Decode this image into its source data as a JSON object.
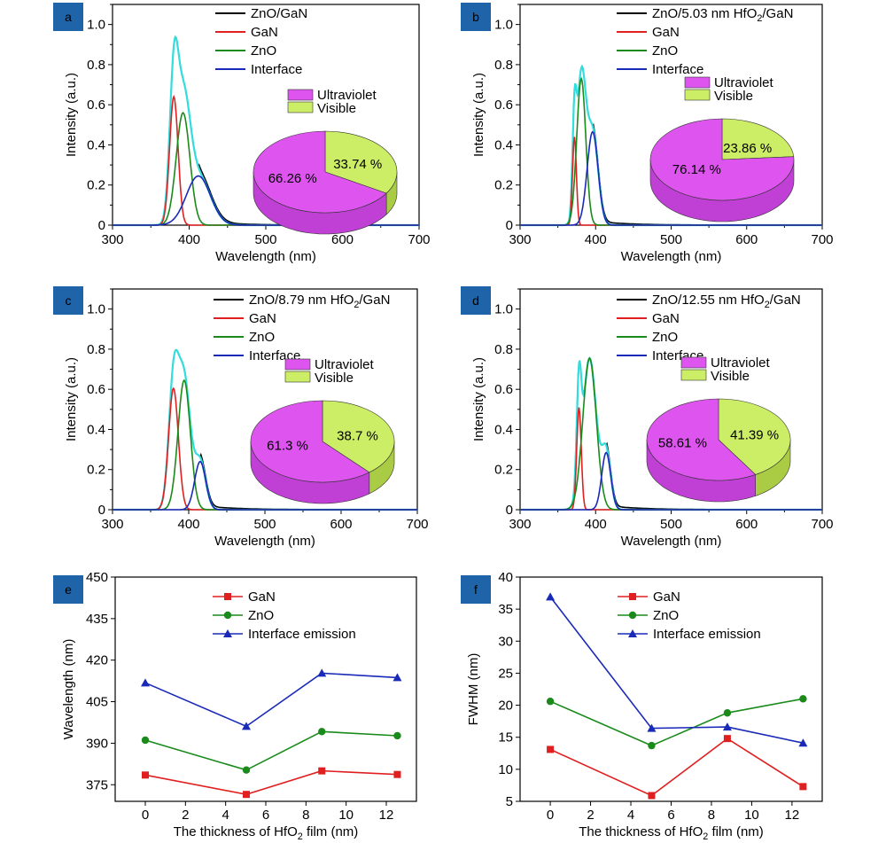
{
  "colors": {
    "measured": "#000000",
    "fit": "#33dddd",
    "gan": "#e02020",
    "zno": "#1a8a1a",
    "interface": "#1a2ab8",
    "uv": "#dd55ee",
    "uv_side": "#c040d6",
    "vis": "#ccee66",
    "vis_side": "#aacc44",
    "badge": "#1f63a8"
  },
  "chart_data": [
    {
      "panel": "a",
      "type": "line",
      "xlabel": "Wavelength (nm)",
      "ylabel": "Intensity (a.u.)",
      "xlim": [
        300,
        700
      ],
      "ylim": [
        0,
        1.1
      ],
      "xticks": [
        300,
        400,
        500,
        600,
        700
      ],
      "yticks": [
        0,
        0.2,
        0.4,
        0.6,
        0.8,
        1.0
      ],
      "legend": [
        {
          "key": "measured",
          "pre": "ZnO/GaN",
          "sub": "",
          "post": ""
        },
        {
          "key": "gan",
          "pre": "GaN",
          "sub": "",
          "post": ""
        },
        {
          "key": "zno",
          "pre": "ZnO",
          "sub": "",
          "post": ""
        },
        {
          "key": "interface",
          "pre": "Interface",
          "sub": "",
          "post": ""
        }
      ],
      "peaks": {
        "gan": {
          "center": 380,
          "height": 0.64,
          "fwhm": 13
        },
        "zno": {
          "center": 392,
          "height": 0.56,
          "fwhm": 21
        },
        "interface": {
          "center": 412,
          "height": 0.245,
          "fwhm": 37
        }
      },
      "pie": {
        "labels": [
          "Ultraviolet",
          "Visible"
        ],
        "values": [
          66.26,
          33.74
        ],
        "value_labels": [
          "66.26 %",
          "33.74 %"
        ]
      }
    },
    {
      "panel": "b",
      "type": "line",
      "xlabel": "Wavelength (nm)",
      "ylabel": "Intensity (a.u.)",
      "xlim": [
        300,
        700
      ],
      "ylim": [
        0,
        1.1
      ],
      "xticks": [
        300,
        400,
        500,
        600,
        700
      ],
      "yticks": [
        0,
        0.2,
        0.4,
        0.6,
        0.8,
        1.0
      ],
      "legend": [
        {
          "key": "measured",
          "pre": "ZnO/5.03 nm HfO",
          "sub": "2",
          "post": "/GaN"
        },
        {
          "key": "gan",
          "pre": "GaN",
          "sub": "",
          "post": ""
        },
        {
          "key": "zno",
          "pre": "ZnO",
          "sub": "",
          "post": ""
        },
        {
          "key": "interface",
          "pre": "Interface",
          "sub": "",
          "post": ""
        }
      ],
      "peaks": {
        "gan": {
          "center": 372,
          "height": 0.44,
          "fwhm": 6
        },
        "zno": {
          "center": 381,
          "height": 0.73,
          "fwhm": 14
        },
        "interface": {
          "center": 396,
          "height": 0.465,
          "fwhm": 17
        }
      },
      "pie": {
        "labels": [
          "Ultraviolet",
          "Visible"
        ],
        "values": [
          76.14,
          23.86
        ],
        "value_labels": [
          "76.14 %",
          "23.86 %"
        ]
      }
    },
    {
      "panel": "c",
      "type": "line",
      "xlabel": "Wavelength (nm)",
      "ylabel": "Intensity (a.u.)",
      "xlim": [
        300,
        700
      ],
      "ylim": [
        0,
        1.1
      ],
      "xticks": [
        300,
        400,
        500,
        600,
        700
      ],
      "yticks": [
        0,
        0.2,
        0.4,
        0.6,
        0.8,
        1.0
      ],
      "legend": [
        {
          "key": "measured",
          "pre": "ZnO/8.79 nm HfO",
          "sub": "2",
          "post": "/GaN"
        },
        {
          "key": "gan",
          "pre": "GaN",
          "sub": "",
          "post": ""
        },
        {
          "key": "zno",
          "pre": "ZnO",
          "sub": "",
          "post": ""
        },
        {
          "key": "interface",
          "pre": "Interface",
          "sub": "",
          "post": ""
        }
      ],
      "peaks": {
        "gan": {
          "center": 380,
          "height": 0.605,
          "fwhm": 15
        },
        "zno": {
          "center": 394,
          "height": 0.645,
          "fwhm": 19
        },
        "interface": {
          "center": 415,
          "height": 0.24,
          "fwhm": 17
        }
      },
      "pie": {
        "labels": [
          "Ultraviolet",
          "Visible"
        ],
        "values": [
          61.3,
          38.7
        ],
        "value_labels": [
          "61.3 %",
          "38.7 %"
        ]
      }
    },
    {
      "panel": "d",
      "type": "line",
      "xlabel": "Wavelength (nm)",
      "ylabel": "Intensity (a.u.)",
      "xlim": [
        300,
        700
      ],
      "ylim": [
        0,
        1.1
      ],
      "xticks": [
        300,
        400,
        500,
        600,
        700
      ],
      "yticks": [
        0,
        0.2,
        0.4,
        0.6,
        0.8,
        1.0
      ],
      "legend": [
        {
          "key": "measured",
          "pre": "ZnO/12.55 nm HfO",
          "sub": "2",
          "post": "/GaN"
        },
        {
          "key": "gan",
          "pre": "GaN",
          "sub": "",
          "post": ""
        },
        {
          "key": "zno",
          "pre": "ZnO",
          "sub": "",
          "post": ""
        },
        {
          "key": "interface",
          "pre": "Interface",
          "sub": "",
          "post": ""
        }
      ],
      "peaks": {
        "gan": {
          "center": 378,
          "height": 0.51,
          "fwhm": 7
        },
        "zno": {
          "center": 392,
          "height": 0.755,
          "fwhm": 21
        },
        "interface": {
          "center": 414,
          "height": 0.285,
          "fwhm": 14
        }
      },
      "pie": {
        "labels": [
          "Ultraviolet",
          "Visible"
        ],
        "values": [
          58.61,
          41.39
        ],
        "value_labels": [
          "58.61 %",
          "41.39 %"
        ]
      }
    },
    {
      "panel": "e",
      "type": "line",
      "xlabel_pre": "The thickness of HfO",
      "xlabel_sub": "2",
      "xlabel_post": " film (nm)",
      "ylabel": "Wavelength (nm)",
      "xlim": [
        -1.5,
        13.5
      ],
      "ylim": [
        369,
        450
      ],
      "xticks": [
        0,
        2,
        4,
        6,
        8,
        10,
        12
      ],
      "yticks": [
        375,
        390,
        405,
        420,
        435,
        450
      ],
      "x": [
        0,
        5.03,
        8.79,
        12.55
      ],
      "series": [
        {
          "key": "gan",
          "name": "GaN",
          "marker": "square",
          "values": [
            378.5,
            371.5,
            380,
            378.7
          ]
        },
        {
          "key": "zno",
          "name": "ZnO",
          "marker": "circle",
          "values": [
            391.1,
            380.3,
            394.2,
            392.7
          ]
        },
        {
          "key": "interface",
          "name": "Interface emission",
          "marker": "triangle",
          "values": [
            411.8,
            396.1,
            415.3,
            413.7
          ]
        }
      ]
    },
    {
      "panel": "f",
      "type": "line",
      "xlabel_pre": "The thickness of HfO",
      "xlabel_sub": "2",
      "xlabel_post": " film (nm)",
      "ylabel": "FWHM (nm)",
      "xlim": [
        -1.5,
        13.5
      ],
      "ylim": [
        5,
        40
      ],
      "xticks": [
        0,
        2,
        4,
        6,
        8,
        10,
        12
      ],
      "yticks": [
        5,
        10,
        15,
        20,
        25,
        30,
        35,
        40
      ],
      "x": [
        0,
        5.03,
        8.79,
        12.55
      ],
      "series": [
        {
          "key": "gan",
          "name": "GaN",
          "marker": "square",
          "values": [
            13.1,
            5.9,
            14.8,
            7.3
          ]
        },
        {
          "key": "zno",
          "name": "ZnO",
          "marker": "circle",
          "values": [
            20.6,
            13.7,
            18.8,
            21.0
          ]
        },
        {
          "key": "interface",
          "name": "Interface emission",
          "marker": "triangle",
          "values": [
            36.9,
            16.4,
            16.6,
            14.1
          ]
        }
      ]
    }
  ]
}
